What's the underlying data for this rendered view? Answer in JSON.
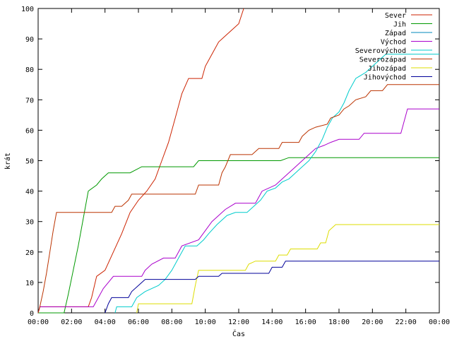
{
  "chart_data": {
    "type": "line",
    "step": true,
    "xlabel": "Čas",
    "ylabel": "krát",
    "xlim": [
      0,
      24
    ],
    "ylim": [
      0,
      100
    ],
    "x_ticks": [
      {
        "value": 0,
        "label": "00:00"
      },
      {
        "value": 2,
        "label": "02:00"
      },
      {
        "value": 4,
        "label": "04:00"
      },
      {
        "value": 6,
        "label": "06:00"
      },
      {
        "value": 8,
        "label": "08:00"
      },
      {
        "value": 10,
        "label": "10:00"
      },
      {
        "value": 12,
        "label": "12:00"
      },
      {
        "value": 14,
        "label": "14:00"
      },
      {
        "value": 16,
        "label": "16:00"
      },
      {
        "value": 18,
        "label": "18:00"
      },
      {
        "value": 20,
        "label": "20:00"
      },
      {
        "value": 22,
        "label": "22:00"
      },
      {
        "value": 24,
        "label": "00:00"
      }
    ],
    "y_ticks": [
      0,
      10,
      20,
      30,
      40,
      50,
      60,
      70,
      80,
      90,
      100
    ],
    "grid": false,
    "legend_position": "top-right",
    "series": [
      {
        "name": "Sever",
        "color": "#cc2200",
        "points": [
          [
            0,
            0
          ],
          [
            0.1,
            2
          ],
          [
            3.0,
            2
          ],
          [
            3.2,
            5
          ],
          [
            3.5,
            12
          ],
          [
            4.0,
            14
          ],
          [
            4.5,
            20
          ],
          [
            5.0,
            26
          ],
          [
            5.5,
            33
          ],
          [
            6.0,
            37
          ],
          [
            6.5,
            40
          ],
          [
            7.0,
            44
          ],
          [
            7.4,
            50
          ],
          [
            7.8,
            56
          ],
          [
            8.2,
            64
          ],
          [
            8.6,
            72
          ],
          [
            9.0,
            77
          ],
          [
            9.8,
            77
          ],
          [
            10.0,
            81
          ],
          [
            10.4,
            85
          ],
          [
            10.8,
            89
          ],
          [
            11.2,
            91
          ],
          [
            11.6,
            93
          ],
          [
            12.0,
            95
          ],
          [
            12.3,
            100
          ]
        ]
      },
      {
        "name": "Jih",
        "color": "#009900",
        "points": [
          [
            0,
            0
          ],
          [
            1.55,
            0
          ],
          [
            1.8,
            6
          ],
          [
            2.1,
            14
          ],
          [
            2.4,
            22
          ],
          [
            2.7,
            31
          ],
          [
            3.0,
            40
          ],
          [
            3.5,
            42
          ],
          [
            3.8,
            44
          ],
          [
            4.2,
            46
          ],
          [
            5.5,
            46
          ],
          [
            6.2,
            48
          ],
          [
            9.3,
            48
          ],
          [
            9.6,
            50
          ],
          [
            14.5,
            50
          ],
          [
            15.0,
            51
          ],
          [
            24,
            51
          ]
        ]
      },
      {
        "name": "Západ",
        "color": "#0088bb",
        "points": []
      },
      {
        "name": "Východ",
        "color": "#aa00cc",
        "points": [
          [
            0,
            0
          ],
          [
            0.1,
            2
          ],
          [
            3.3,
            2
          ],
          [
            3.9,
            8
          ],
          [
            4.2,
            10
          ],
          [
            4.5,
            12
          ],
          [
            6.2,
            12
          ],
          [
            6.4,
            14
          ],
          [
            6.8,
            16
          ],
          [
            7.5,
            18
          ],
          [
            8.2,
            18
          ],
          [
            8.6,
            22
          ],
          [
            9.6,
            24
          ],
          [
            10.0,
            27
          ],
          [
            10.4,
            30
          ],
          [
            10.8,
            32
          ],
          [
            11.2,
            34
          ],
          [
            11.8,
            36
          ],
          [
            13.0,
            36
          ],
          [
            13.4,
            40
          ],
          [
            13.8,
            41
          ],
          [
            14.2,
            42
          ],
          [
            14.6,
            44
          ],
          [
            15.0,
            46
          ],
          [
            15.4,
            48
          ],
          [
            15.8,
            50
          ],
          [
            16.2,
            52
          ],
          [
            16.6,
            54
          ],
          [
            17.1,
            55
          ],
          [
            17.5,
            56
          ],
          [
            18.0,
            57
          ],
          [
            19.2,
            57
          ],
          [
            19.5,
            59
          ],
          [
            21.7,
            59
          ],
          [
            21.9,
            63
          ],
          [
            22.1,
            67
          ],
          [
            24,
            67
          ]
        ]
      },
      {
        "name": "Severovýchod",
        "color": "#00cccc",
        "points": [
          [
            4.6,
            0
          ],
          [
            4.7,
            2
          ],
          [
            5.6,
            2
          ],
          [
            5.9,
            5
          ],
          [
            6.4,
            7
          ],
          [
            7.2,
            9
          ],
          [
            7.6,
            11
          ],
          [
            8.0,
            14
          ],
          [
            8.4,
            18
          ],
          [
            8.8,
            22
          ],
          [
            9.5,
            22
          ],
          [
            9.9,
            24
          ],
          [
            10.2,
            26
          ],
          [
            10.7,
            29
          ],
          [
            11.3,
            32
          ],
          [
            11.8,
            33
          ],
          [
            12.5,
            33
          ],
          [
            12.9,
            35
          ],
          [
            13.3,
            37
          ],
          [
            13.7,
            40
          ],
          [
            14.2,
            41
          ],
          [
            14.6,
            43
          ],
          [
            15.0,
            44
          ],
          [
            15.4,
            46
          ],
          [
            15.8,
            48
          ],
          [
            16.2,
            50
          ],
          [
            16.6,
            53
          ],
          [
            17.0,
            57
          ],
          [
            17.3,
            61
          ],
          [
            17.6,
            64
          ],
          [
            18.0,
            66
          ],
          [
            18.3,
            69
          ],
          [
            18.6,
            73
          ],
          [
            19.0,
            77
          ],
          [
            19.6,
            79
          ],
          [
            20.0,
            81
          ],
          [
            20.4,
            83
          ],
          [
            20.8,
            85
          ],
          [
            24,
            85
          ]
        ]
      },
      {
        "name": "Severozápad",
        "color": "#bb3300",
        "points": [
          [
            0,
            0
          ],
          [
            0.1,
            2
          ],
          [
            0.3,
            7
          ],
          [
            0.5,
            13
          ],
          [
            0.7,
            20
          ],
          [
            0.9,
            27
          ],
          [
            1.1,
            33
          ],
          [
            4.4,
            33
          ],
          [
            4.6,
            35
          ],
          [
            5.0,
            35
          ],
          [
            5.4,
            37
          ],
          [
            5.6,
            39
          ],
          [
            9.4,
            39
          ],
          [
            9.6,
            42
          ],
          [
            10.8,
            42
          ],
          [
            11.0,
            46
          ],
          [
            11.2,
            48
          ],
          [
            11.5,
            52
          ],
          [
            12.8,
            52
          ],
          [
            13.2,
            54
          ],
          [
            14.4,
            54
          ],
          [
            14.6,
            56
          ],
          [
            15.6,
            56
          ],
          [
            15.8,
            58
          ],
          [
            16.2,
            60
          ],
          [
            16.6,
            61
          ],
          [
            17.3,
            62
          ],
          [
            17.5,
            64
          ],
          [
            18.0,
            65
          ],
          [
            18.3,
            67
          ],
          [
            18.6,
            68
          ],
          [
            19.0,
            70
          ],
          [
            19.6,
            71
          ],
          [
            19.9,
            73
          ],
          [
            20.6,
            73
          ],
          [
            20.9,
            75
          ],
          [
            24,
            75
          ]
        ]
      },
      {
        "name": "Jihozápad",
        "color": "#dddd00",
        "points": [
          [
            5.9,
            0
          ],
          [
            6.0,
            3
          ],
          [
            9.2,
            3
          ],
          [
            9.4,
            9
          ],
          [
            9.6,
            14
          ],
          [
            12.4,
            14
          ],
          [
            12.6,
            16
          ],
          [
            13.0,
            17
          ],
          [
            14.2,
            17
          ],
          [
            14.4,
            19
          ],
          [
            14.9,
            19
          ],
          [
            15.1,
            21
          ],
          [
            16.7,
            21
          ],
          [
            16.9,
            23
          ],
          [
            17.2,
            23
          ],
          [
            17.4,
            27
          ],
          [
            17.8,
            29
          ],
          [
            24,
            29
          ]
        ]
      },
      {
        "name": "Jihovýchod",
        "color": "#000099",
        "points": [
          [
            4.0,
            0
          ],
          [
            4.2,
            3
          ],
          [
            4.4,
            5
          ],
          [
            5.4,
            5
          ],
          [
            5.6,
            7
          ],
          [
            6.0,
            9
          ],
          [
            6.4,
            11
          ],
          [
            9.4,
            11
          ],
          [
            9.6,
            12
          ],
          [
            10.8,
            12
          ],
          [
            11.0,
            13
          ],
          [
            13.8,
            13
          ],
          [
            14.0,
            15
          ],
          [
            14.6,
            15
          ],
          [
            14.8,
            17
          ],
          [
            24,
            17
          ]
        ]
      }
    ]
  }
}
